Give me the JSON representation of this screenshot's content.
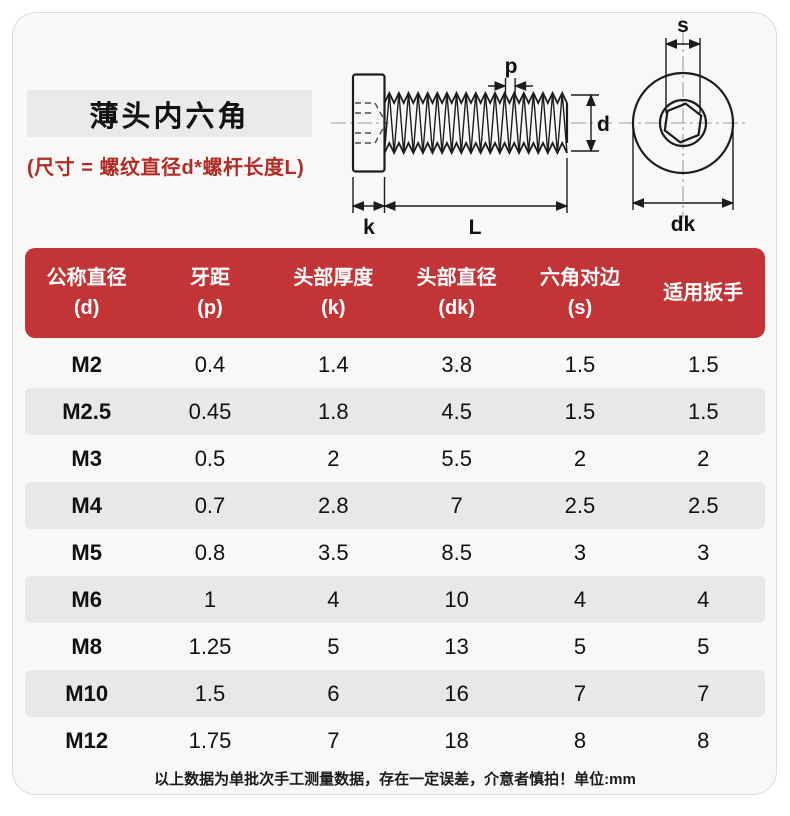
{
  "page": {
    "title": "薄头内六角",
    "subtitle": "(尺寸 = 螺纹直径d*螺杆长度L)",
    "footer_note": "以上数据为单批次手工测量数据，存在一定误差，介意者慎拍！单位:mm"
  },
  "diagram": {
    "labels": {
      "pitch": "p",
      "thread_diameter": "d",
      "head_thickness": "k",
      "shaft_length": "L",
      "hex_socket_width": "s",
      "head_diameter": "dk"
    }
  },
  "table": {
    "headers": [
      {
        "line1": "公称直径",
        "line2": "(d)"
      },
      {
        "line1": "牙距",
        "line2": "(p)"
      },
      {
        "line1": "头部厚度",
        "line2": "(k)"
      },
      {
        "line1": "头部直径",
        "line2": "(dk)"
      },
      {
        "line1": "六角对边",
        "line2": "(s)"
      },
      {
        "line1": "适用扳手",
        "line2": ""
      }
    ],
    "rows": [
      [
        "M2",
        "0.4",
        "1.4",
        "3.8",
        "1.5",
        "1.5"
      ],
      [
        "M2.5",
        "0.45",
        "1.8",
        "4.5",
        "1.5",
        "1.5"
      ],
      [
        "M3",
        "0.5",
        "2",
        "5.5",
        "2",
        "2"
      ],
      [
        "M4",
        "0.7",
        "2.8",
        "7",
        "2.5",
        "2.5"
      ],
      [
        "M5",
        "0.8",
        "3.5",
        "8.5",
        "3",
        "3"
      ],
      [
        "M6",
        "1",
        "4",
        "10",
        "4",
        "4"
      ],
      [
        "M8",
        "1.25",
        "5",
        "13",
        "5",
        "5"
      ],
      [
        "M10",
        "1.5",
        "6",
        "16",
        "7",
        "7"
      ],
      [
        "M12",
        "1.75",
        "7",
        "18",
        "8",
        "8"
      ]
    ]
  },
  "colors": {
    "header_bg": "#c23436",
    "accent_red": "#b22b24",
    "row_alt_bg": "#e8e8e8",
    "card_bg": "#f8f8f7",
    "title_box_bg": "#eaeae8"
  }
}
